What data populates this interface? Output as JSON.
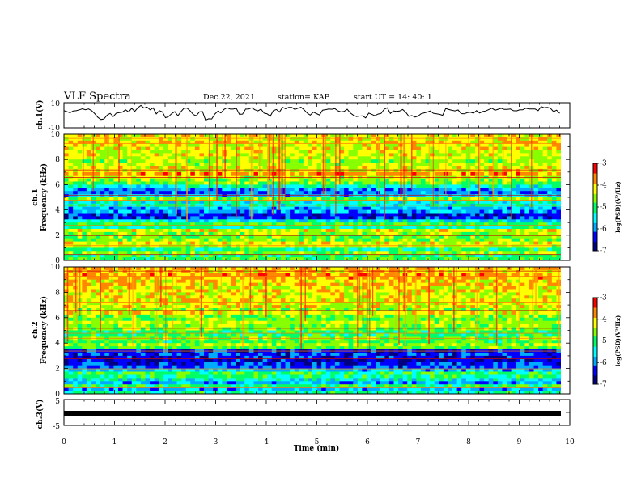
{
  "header": {
    "title": "VLF Spectra",
    "date": "Dec.22, 2021",
    "station": "station= KAP",
    "start": "start  UT =   14: 40: 1"
  },
  "chart_data": [
    {
      "type": "line",
      "ylabel": "ch.1(V)",
      "ylim": [
        -10,
        10
      ],
      "yticks": [
        "10",
        "-10"
      ],
      "x_range_min": [
        0,
        9.8
      ],
      "values": [
        3.5,
        2.6,
        1.7,
        3.2,
        3.4,
        4.1,
        5.0,
        4.2,
        4.9,
        3.5,
        1.0,
        -2.0,
        -3.9,
        -3.4,
        -0.3,
        1.2,
        -1.4,
        1.4,
        1.9,
        2.2,
        4.1,
        2.4,
        5.4,
        2.9,
        5.9,
        7.7,
        5.6,
        6.4,
        4.1,
        5.7,
        0.7,
        3.5,
        2.4,
        -2.4,
        -1.4,
        1.0,
        2.6,
        -0.8,
        2.6,
        5.5,
        5.5,
        3.3,
        0.3,
        -0.8,
        2.5,
        2.7,
        -4.4,
        -3.3,
        -3.4,
        0.6,
        3.0,
        1.6,
        4.5,
        5.9,
        4.7,
        4.7,
        5.4,
        0.4,
        0.6,
        4.7,
        4.9,
        5.8,
        4.2,
        3.3,
        4.7,
        1.4,
        0.9,
        -1.2,
        3.5,
        4.4,
        2.3,
        6.2,
        5.0,
        6.2,
        6.2,
        4.5,
        5.5,
        6.3,
        4.2,
        1.5,
        -0.3,
        2.3,
        1.0,
        -0.1,
        3.9,
        4.3,
        4.8,
        4.6,
        5.1,
        3.3,
        2.4,
        2.8,
        4.6,
        1.6,
        -0.3,
        -1.4,
        -1.0,
        -0.9,
        -2.5,
        1.4,
        0.4,
        -0.7,
        0.6,
        1.1,
        4.6,
        5.8,
        1.1,
        3.3,
        2.9,
        3.1,
        4.4,
        2.2,
        -1.2,
        -0.6,
        -1.9,
        -1.0,
        0.9,
        1.6,
        2.3,
        3.2,
        1.3,
        0.9,
        0.4,
        -0.4,
        5.3,
        4.4,
        3.7,
        3.3,
        4.0,
        1.0,
        0.8,
        1.8,
        2.1,
        1.4,
        3.5,
        1.5,
        2.7,
        3.2,
        4.4,
        5.5,
        3.8,
        4.6,
        5.4,
        4.5,
        4.5,
        4.8,
        3.4,
        3.3,
        4.1,
        4.1,
        5.5,
        4.8,
        4.9,
        4.8,
        3.5,
        6.8,
        5.8,
        6.2,
        5.5,
        2.6,
        3.9,
        1.3
      ]
    },
    {
      "type": "heatmap",
      "ylabel": "ch.1\nFrequency  (kHz)",
      "ylim": [
        0,
        10
      ],
      "yticks": [
        "0",
        "2",
        "4",
        "6",
        "8",
        "10"
      ],
      "colorbar": {
        "label": "log(PSD)(V²/Hz)",
        "range": [
          -7,
          -3
        ],
        "ticks": [
          "-3",
          "-4",
          "-5",
          "-6",
          "-7"
        ]
      },
      "profile": [
        0.55,
        0.5,
        0.62,
        0.48,
        0.66,
        0.72,
        0.6,
        0.58,
        0.62,
        0.7,
        0.45,
        0.55,
        0.38,
        0.18,
        0.15,
        0.28,
        0.3,
        0.42,
        0.4,
        0.6,
        0.32,
        0.25,
        0.28,
        0.42,
        0.58,
        0.62,
        0.66,
        0.82,
        0.68,
        0.7,
        0.66,
        0.62,
        0.68,
        0.7,
        0.68,
        0.72,
        0.7,
        0.74,
        0.7,
        0.72
      ]
    },
    {
      "type": "heatmap",
      "ylabel": "ch.2\nFrequency  (kHz)",
      "ylim": [
        0,
        10
      ],
      "yticks": [
        "0",
        "2",
        "4",
        "6",
        "8",
        "10"
      ],
      "colorbar": {
        "label": "log(PSD)(V²/Hz)",
        "range": [
          -7,
          -3
        ],
        "ticks": [
          "-3",
          "-4",
          "-5",
          "-6",
          "-7"
        ]
      },
      "profile": [
        0.45,
        0.3,
        0.5,
        0.28,
        0.4,
        0.48,
        0.52,
        0.32,
        0.22,
        0.18,
        0.12,
        0.15,
        0.18,
        0.15,
        0.56,
        0.62,
        0.55,
        0.58,
        0.5,
        0.52,
        0.6,
        0.62,
        0.66,
        0.58,
        0.6,
        0.7,
        0.62,
        0.72,
        0.68,
        0.7,
        0.72,
        0.7,
        0.74,
        0.72,
        0.76,
        0.74,
        0.78,
        0.8,
        0.75,
        0.78
      ]
    },
    {
      "type": "line",
      "ylabel": "ch.3(V)",
      "ylim": [
        -5,
        5
      ],
      "yticks": [
        "5",
        "-5"
      ],
      "xlabel": "Time  (min)",
      "xlim": [
        0,
        10
      ],
      "xticks": [
        "0",
        "1",
        "2",
        "3",
        "4",
        "5",
        "6",
        "7",
        "8",
        "9",
        "10"
      ],
      "values": [
        0,
        0
      ]
    }
  ],
  "colors": {
    "scale": [
      "#000080",
      "#0000ff",
      "#00aaff",
      "#00ffff",
      "#00ff66",
      "#88ff00",
      "#ffff00",
      "#ff8800",
      "#ff0000"
    ]
  }
}
